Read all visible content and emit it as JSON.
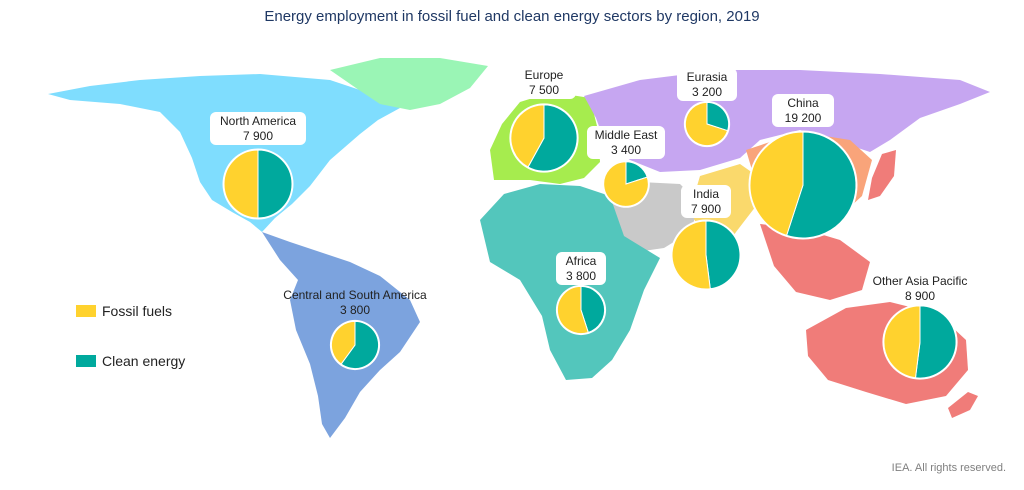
{
  "title": "Energy employment in fossil fuel and clean energy sectors by region, 2019",
  "credit": "IEA. All rights reserved.",
  "legend": [
    {
      "label": "Fossil fuels",
      "color": "#FFD22E"
    },
    {
      "label": "Clean energy",
      "color": "#00A99D"
    }
  ],
  "chart_data": {
    "type": "pie",
    "title": "Energy employment in fossil fuel and clean energy sectors by region, 2019",
    "series_names": [
      "Fossil fuels",
      "Clean energy"
    ],
    "regions": [
      {
        "name": "North America",
        "total": "7 900",
        "total_value": 7900,
        "fossil": 0.5,
        "clean": 0.5
      },
      {
        "name": "Central and South America",
        "total": "3 800",
        "total_value": 3800,
        "fossil": 0.4,
        "clean": 0.6
      },
      {
        "name": "Europe",
        "total": "7 500",
        "total_value": 7500,
        "fossil": 0.42,
        "clean": 0.58
      },
      {
        "name": "Eurasia",
        "total": "3 200",
        "total_value": 3200,
        "fossil": 0.7,
        "clean": 0.3
      },
      {
        "name": "Middle East",
        "total": "3 400",
        "total_value": 3400,
        "fossil": 0.8,
        "clean": 0.2
      },
      {
        "name": "Africa",
        "total": "3 800",
        "total_value": 3800,
        "fossil": 0.55,
        "clean": 0.45
      },
      {
        "name": "India",
        "total": "7 900",
        "total_value": 7900,
        "fossil": 0.52,
        "clean": 0.48
      },
      {
        "name": "China",
        "total": "19 200",
        "total_value": 19200,
        "fossil": 0.45,
        "clean": 0.55
      },
      {
        "name": "Other Asia Pacific",
        "total": "8 900",
        "total_value": 8900,
        "fossil": 0.48,
        "clean": 0.52
      }
    ],
    "map_region_colors": {
      "north_america": "#7FDDFE",
      "central_south_america": "#7CA3DE",
      "europe": "#A6EC4E",
      "greenland": "#9AF5B5",
      "eurasia": "#C6A6F1",
      "middle_east": "#C9C9C9",
      "africa": "#53C6BC",
      "india": "#FAD96C",
      "china": "#F9A47A",
      "other_asia_pacific": "#F07C79"
    }
  }
}
